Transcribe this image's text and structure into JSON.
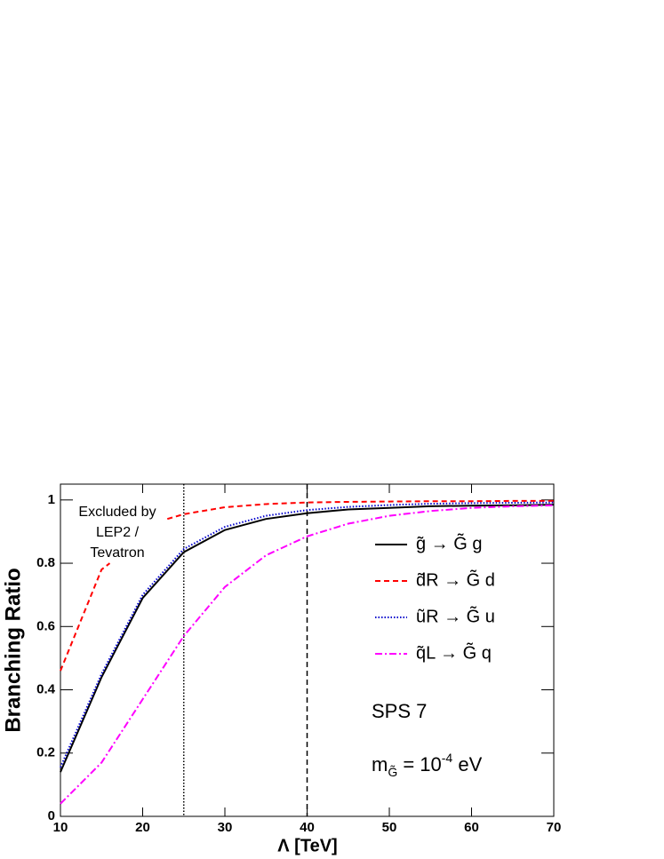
{
  "chart_data": {
    "type": "line",
    "x_label": "Λ  [TeV]",
    "y_label": "Branching Ratio",
    "x": [
      10,
      15,
      20,
      25,
      30,
      35,
      40,
      45,
      50,
      55,
      60,
      65,
      70
    ],
    "series": [
      {
        "name": "g̃ → G̃ g",
        "color": "#000000",
        "style": "solid",
        "values": [
          0.14,
          0.44,
          0.69,
          0.835,
          0.905,
          0.94,
          0.958,
          0.97,
          0.975,
          0.98,
          0.982,
          0.983,
          0.985
        ]
      },
      {
        "name": "d̃R → G̃ d",
        "color": "#ff0000",
        "style": "dashed",
        "x": [
          10,
          15,
          16,
          20,
          23,
          25,
          30,
          35,
          40,
          45,
          50,
          55,
          60,
          65,
          70
        ],
        "values": [
          0.46,
          0.78,
          0.8,
          null,
          0.94,
          0.955,
          0.977,
          0.987,
          0.992,
          0.994,
          0.995,
          0.996,
          0.996,
          0.997,
          0.997
        ]
      },
      {
        "name": "ũR → G̃ u",
        "color": "#0000cc",
        "style": "dotted",
        "values": [
          0.155,
          0.45,
          0.7,
          0.845,
          0.915,
          0.95,
          0.968,
          0.978,
          0.984,
          0.988,
          0.99,
          0.991,
          0.992
        ]
      },
      {
        "name": "q̃L → G̃ q",
        "color": "#ff00ff",
        "style": "dashdot",
        "values": [
          0.04,
          0.17,
          0.37,
          0.57,
          0.725,
          0.825,
          0.885,
          0.925,
          0.95,
          0.965,
          0.975,
          0.98,
          0.983
        ]
      }
    ],
    "vlines": [
      {
        "x": 25,
        "style": "dotted"
      },
      {
        "x": 40,
        "style": "dashed"
      }
    ],
    "annotations": [
      {
        "lines": [
          "Excluded by",
          "LEP2 /",
          "Tevatron"
        ]
      },
      {
        "text": "SPS 7"
      },
      {
        "parts": [
          "m",
          "G̃",
          " = 10",
          "-4",
          " eV"
        ]
      }
    ],
    "xlim": [
      10,
      70
    ],
    "xticks": [
      10,
      20,
      30,
      40,
      50,
      60,
      70
    ],
    "ylim": [
      0,
      1.05
    ],
    "yticks": [
      0,
      0.2,
      0.4,
      0.6,
      0.8,
      1
    ],
    "legend": "right"
  }
}
